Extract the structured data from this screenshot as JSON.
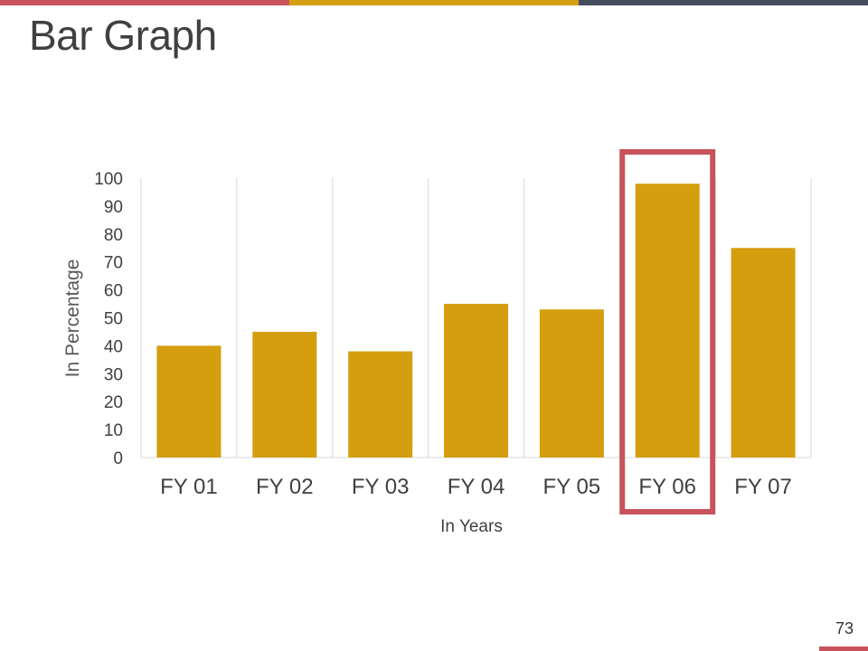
{
  "slide": {
    "title": "Bar Graph",
    "page_number": "73"
  },
  "colors": {
    "bar": "#D49E0E",
    "highlight": "#C8535A",
    "accent_bar": [
      "#C8535A",
      "#D49E0E",
      "#444D5C"
    ],
    "grid": "#D9D9D9",
    "text": "#404040"
  },
  "chart_data": {
    "type": "bar",
    "categories": [
      "FY 01",
      "FY 02",
      "FY 03",
      "FY 04",
      "FY 05",
      "FY 06",
      "FY 07"
    ],
    "values": [
      40,
      45,
      38,
      55,
      53,
      98,
      75
    ],
    "xlabel": "In Years",
    "ylabel": "In Percentage",
    "ylim": [
      0,
      100
    ],
    "yticks": [
      0,
      10,
      20,
      30,
      40,
      50,
      60,
      70,
      80,
      90,
      100
    ],
    "grid": "vertical",
    "highlighted_category": "FY 06"
  }
}
